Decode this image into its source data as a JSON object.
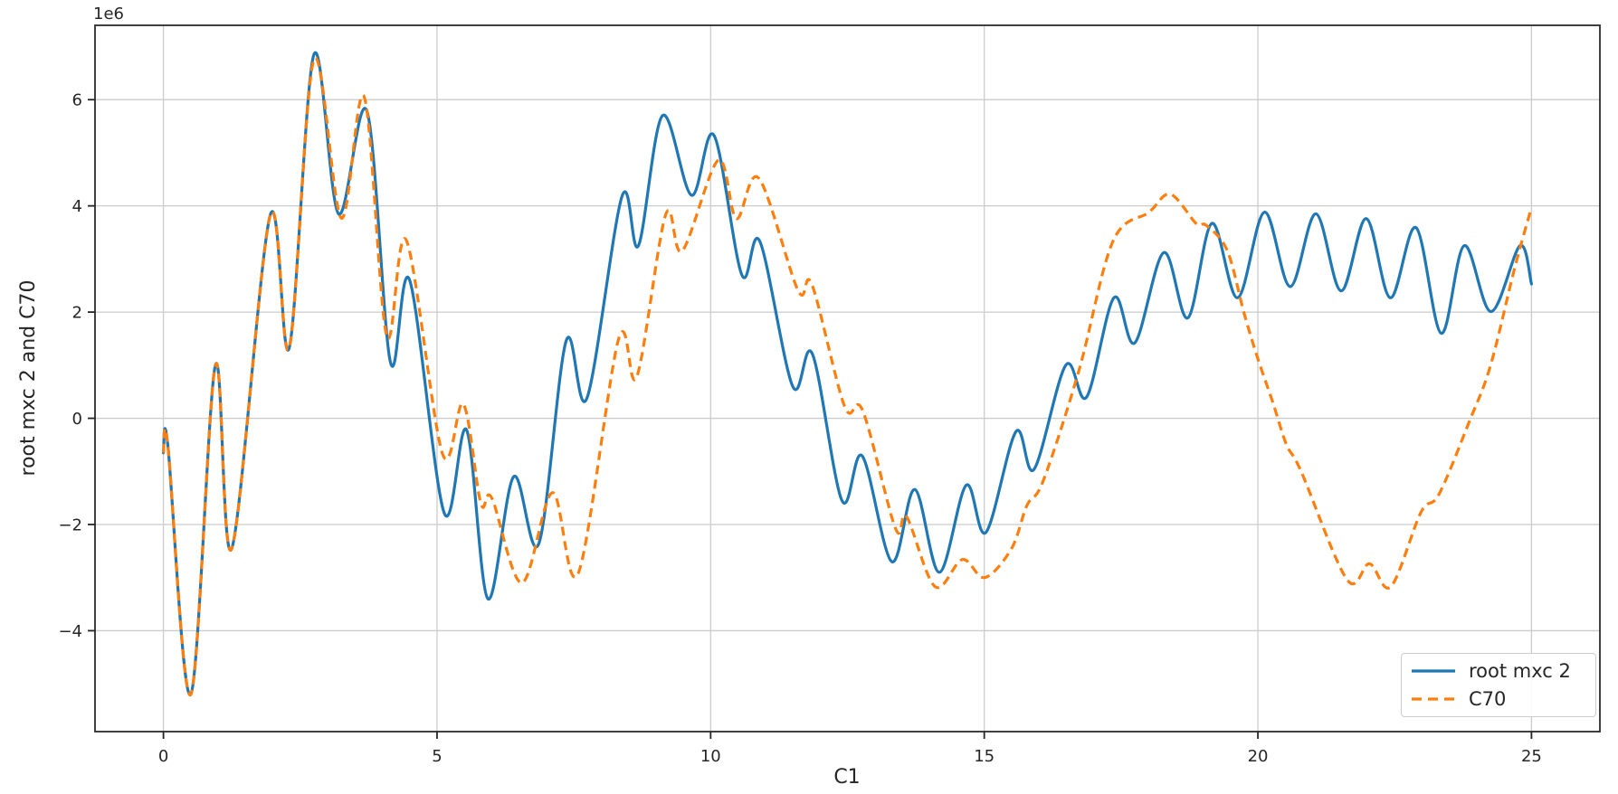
{
  "figure": {
    "background": "#ffffff",
    "offset_label": "1e6"
  },
  "chart_data": {
    "type": "line",
    "title": "",
    "xlabel": "C1",
    "ylabel": "root mxc 2 and C70",
    "y_offset_label": "1e6",
    "value_unit": 1000000,
    "xlim": [
      -1.25,
      26.25
    ],
    "ylim": [
      -5.9,
      7.4
    ],
    "grid": true,
    "grid_color": "#cccccc",
    "axis_color": "#262626",
    "legend_position": "lower right",
    "x_ticks": [
      {
        "value": 0,
        "label": "0"
      },
      {
        "value": 5,
        "label": "5"
      },
      {
        "value": 10,
        "label": "10"
      },
      {
        "value": 15,
        "label": "15"
      },
      {
        "value": 20,
        "label": "20"
      },
      {
        "value": 25,
        "label": "25"
      }
    ],
    "y_ticks": [
      {
        "value": 6,
        "label": "6"
      },
      {
        "value": 4,
        "label": "4"
      },
      {
        "value": 2,
        "label": "2"
      },
      {
        "value": 0,
        "label": "0"
      },
      {
        "value": -2,
        "label": "−2"
      },
      {
        "value": -4,
        "label": "−4"
      }
    ],
    "series": [
      {
        "name": "root mxc 2",
        "color": "#1f77b4",
        "style": "solid",
        "line_width": 3.2,
        "points": [
          [
            0,
            -0.65
          ],
          [
            0.08,
            -0.5
          ],
          [
            0.5,
            -5.2
          ],
          [
            0.95,
            1.0
          ],
          [
            1.25,
            -2.45
          ],
          [
            1.95,
            3.82
          ],
          [
            2.3,
            1.33
          ],
          [
            2.75,
            6.85
          ],
          [
            3.2,
            3.85
          ],
          [
            3.72,
            5.78
          ],
          [
            4.15,
            1.05
          ],
          [
            4.5,
            2.6
          ],
          [
            5.13,
            -1.78
          ],
          [
            5.54,
            -0.22
          ],
          [
            5.93,
            -3.4
          ],
          [
            6.4,
            -1.1
          ],
          [
            6.86,
            -2.36
          ],
          [
            7.36,
            1.46
          ],
          [
            7.74,
            0.38
          ],
          [
            8.38,
            4.18
          ],
          [
            8.68,
            3.25
          ],
          [
            9.12,
            5.7
          ],
          [
            9.65,
            4.2
          ],
          [
            10.06,
            5.33
          ],
          [
            10.57,
            2.7
          ],
          [
            10.9,
            3.33
          ],
          [
            11.5,
            0.6
          ],
          [
            11.86,
            1.21
          ],
          [
            12.4,
            -1.55
          ],
          [
            12.77,
            -0.71
          ],
          [
            13.31,
            -2.7
          ],
          [
            13.73,
            -1.34
          ],
          [
            14.18,
            -2.9
          ],
          [
            14.67,
            -1.26
          ],
          [
            15.03,
            -2.15
          ],
          [
            15.58,
            -0.25
          ],
          [
            15.91,
            -0.96
          ],
          [
            16.49,
            1.0
          ],
          [
            16.87,
            0.4
          ],
          [
            17.37,
            2.27
          ],
          [
            17.75,
            1.42
          ],
          [
            18.28,
            3.12
          ],
          [
            18.72,
            1.89
          ],
          [
            19.16,
            3.67
          ],
          [
            19.63,
            2.27
          ],
          [
            20.12,
            3.88
          ],
          [
            20.59,
            2.48
          ],
          [
            21.06,
            3.85
          ],
          [
            21.52,
            2.4
          ],
          [
            21.98,
            3.76
          ],
          [
            22.42,
            2.27
          ],
          [
            22.89,
            3.59
          ],
          [
            23.35,
            1.6
          ],
          [
            23.77,
            3.25
          ],
          [
            24.26,
            2.01
          ],
          [
            24.79,
            3.25
          ],
          [
            25,
            2.53
          ]
        ]
      },
      {
        "name": "C70",
        "color": "#ff7f0e",
        "style": "dashed",
        "line_width": 3.2,
        "points": [
          [
            0,
            -0.65
          ],
          [
            0.08,
            -0.5
          ],
          [
            0.5,
            -5.2
          ],
          [
            0.95,
            1.0
          ],
          [
            1.25,
            -2.45
          ],
          [
            1.95,
            3.82
          ],
          [
            2.3,
            1.33
          ],
          [
            2.75,
            6.75
          ],
          [
            3.25,
            3.77
          ],
          [
            3.67,
            6.05
          ],
          [
            4.08,
            1.55
          ],
          [
            4.44,
            3.35
          ],
          [
            5.1,
            -0.67
          ],
          [
            5.48,
            0.27
          ],
          [
            5.8,
            -1.6
          ],
          [
            6.0,
            -1.5
          ],
          [
            6.55,
            -3.1
          ],
          [
            7.11,
            -1.4
          ],
          [
            7.58,
            -2.92
          ],
          [
            8.32,
            1.5
          ],
          [
            8.65,
            0.78
          ],
          [
            9.18,
            3.84
          ],
          [
            9.48,
            3.15
          ],
          [
            10.14,
            4.86
          ],
          [
            10.47,
            3.76
          ],
          [
            10.88,
            4.52
          ],
          [
            11.6,
            2.4
          ],
          [
            11.85,
            2.52
          ],
          [
            12.45,
            0.22
          ],
          [
            12.78,
            0.14
          ],
          [
            13.38,
            -2.08
          ],
          [
            13.58,
            -1.85
          ],
          [
            14.1,
            -3.17
          ],
          [
            14.6,
            -2.66
          ],
          [
            15.01,
            -3.0
          ],
          [
            15.5,
            -2.45
          ],
          [
            15.78,
            -1.64
          ],
          [
            16.08,
            -1.17
          ],
          [
            16.73,
            0.9
          ],
          [
            17.35,
            3.33
          ],
          [
            18.01,
            3.88
          ],
          [
            18.4,
            4.22
          ],
          [
            18.87,
            3.67
          ],
          [
            19.06,
            3.63
          ],
          [
            19.44,
            3.16
          ],
          [
            19.75,
            1.97
          ],
          [
            20.0,
            1.12
          ],
          [
            20.27,
            0.31
          ],
          [
            20.52,
            -0.49
          ],
          [
            20.79,
            -1.0
          ],
          [
            21.63,
            -3.04
          ],
          [
            22.04,
            -2.74
          ],
          [
            22.43,
            -3.17
          ],
          [
            22.98,
            -1.77
          ],
          [
            23.31,
            -1.43
          ],
          [
            23.86,
            -0.07
          ],
          [
            24.25,
            0.99
          ],
          [
            24.69,
            2.82
          ],
          [
            25,
            3.97
          ]
        ]
      }
    ]
  },
  "legend": {
    "entries": [
      {
        "label": "root mxc 2"
      },
      {
        "label": "C70"
      }
    ]
  }
}
